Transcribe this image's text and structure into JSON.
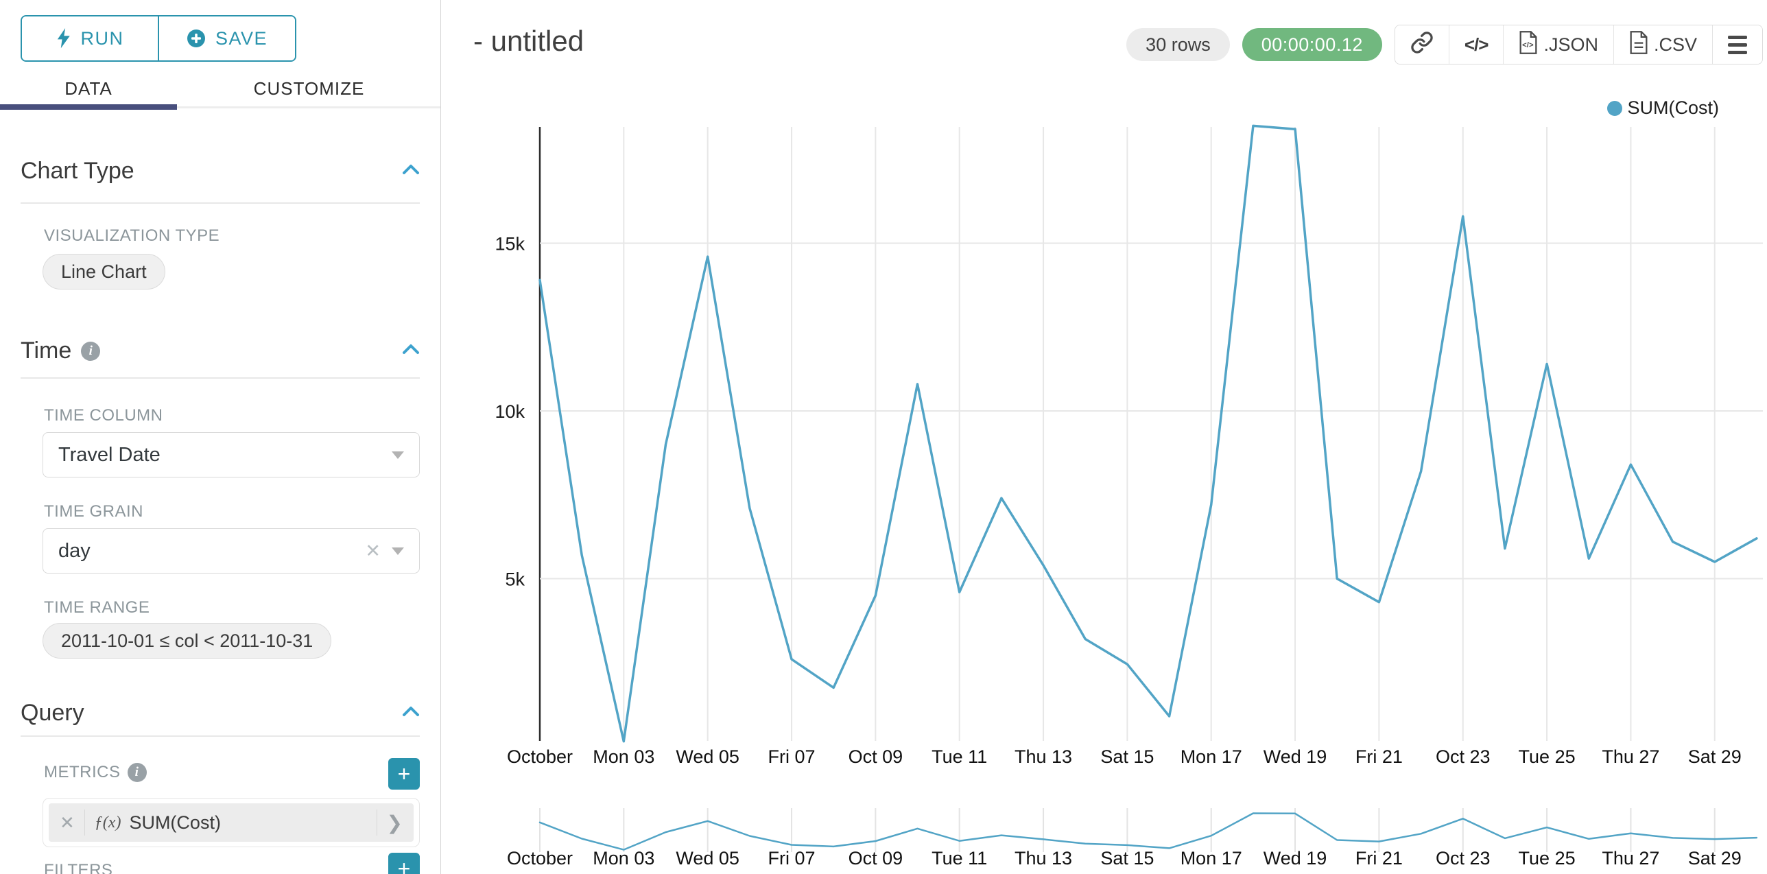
{
  "sidebar": {
    "run_label": "RUN",
    "save_label": "SAVE",
    "tabs": {
      "data": "DATA",
      "customize": "CUSTOMIZE"
    },
    "chart_type": {
      "heading": "Chart Type",
      "viz_type_label": "VISUALIZATION TYPE",
      "viz_type_value": "Line Chart"
    },
    "time": {
      "heading": "Time",
      "time_column_label": "TIME COLUMN",
      "time_column_value": "Travel Date",
      "time_grain_label": "TIME GRAIN",
      "time_grain_value": "day",
      "time_range_label": "TIME RANGE",
      "time_range_value": "2011-10-01 ≤ col < 2011-10-31"
    },
    "query": {
      "heading": "Query",
      "metrics_label": "METRICS",
      "metric_fx": "ƒ(x)",
      "metric_value": "SUM(Cost)",
      "filters_label": "FILTERS"
    }
  },
  "header": {
    "title": "- untitled",
    "rows_badge": "30 rows",
    "timer_badge": "00:00:00.12",
    "json_label": ".JSON",
    "csv_label": ".CSV"
  },
  "legend": {
    "label": "SUM(Cost)",
    "color": "#52a4c6"
  },
  "colors": {
    "accent_teal": "#2a93ad",
    "chevron_blue": "#3da2ce",
    "tab_underline": "#484f7d",
    "line": "#52a4c6",
    "timer_green": "#71b87f",
    "gridline": "#e7e7e7",
    "axis_line": "#2f2f2f"
  },
  "chart_data": {
    "type": "line",
    "title": "- untitled",
    "xlabel": "",
    "ylabel": "",
    "ylim": [
      0,
      18600
    ],
    "grid": true,
    "legend_position": "top-right",
    "has_range_selector_minimap": true,
    "x": [
      "2011-10-01",
      "2011-10-02",
      "2011-10-03",
      "2011-10-04",
      "2011-10-05",
      "2011-10-06",
      "2011-10-07",
      "2011-10-08",
      "2011-10-09",
      "2011-10-10",
      "2011-10-11",
      "2011-10-12",
      "2011-10-13",
      "2011-10-14",
      "2011-10-15",
      "2011-10-16",
      "2011-10-17",
      "2011-10-18",
      "2011-10-19",
      "2011-10-20",
      "2011-10-21",
      "2011-10-22",
      "2011-10-23",
      "2011-10-24",
      "2011-10-25",
      "2011-10-26",
      "2011-10-27",
      "2011-10-28",
      "2011-10-29",
      "2011-10-30"
    ],
    "series": [
      {
        "name": "SUM(Cost)",
        "color": "#52a4c6",
        "values": [
          13900,
          5700,
          150,
          9000,
          14600,
          7100,
          2600,
          1750,
          4500,
          10800,
          4600,
          7400,
          5400,
          3200,
          2450,
          900,
          7200,
          18500,
          18400,
          5000,
          4300,
          8200,
          15800,
          5900,
          11400,
          5600,
          8400,
          6100,
          5500,
          6200
        ]
      }
    ],
    "x_tick_days": [
      1,
      3,
      5,
      7,
      9,
      11,
      13,
      15,
      17,
      19,
      21,
      23,
      25,
      27,
      29
    ],
    "x_tick_labels": [
      "October",
      "Mon 03",
      "Wed 05",
      "Fri 07",
      "Oct 09",
      "Tue 11",
      "Thu 13",
      "Sat 15",
      "Mon 17",
      "Wed 19",
      "Fri 21",
      "Oct 23",
      "Tue 25",
      "Thu 27",
      "Sat 29"
    ],
    "y_ticks": [
      {
        "label": "5k",
        "value": 5000
      },
      {
        "label": "10k",
        "value": 10000
      },
      {
        "label": "15k",
        "value": 15000
      }
    ]
  }
}
